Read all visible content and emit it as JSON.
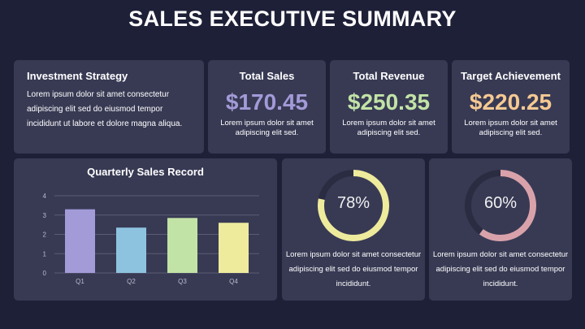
{
  "title": "SALES EXECUTIVE SUMMARY",
  "strategy": {
    "title": "Investment Strategy",
    "text": "Lorem ipsum dolor sit amet consectetur adipiscing elit sed do eiusmod tempor incididunt ut labore et dolore magna aliqua."
  },
  "stats": [
    {
      "title": "Total Sales",
      "value": "$170.45",
      "text": "Lorem ipsum dolor sit amet adipiscing elit sed.",
      "color": "#a39ad8"
    },
    {
      "title": "Total Revenue",
      "value": "$250.35",
      "text": "Lorem ipsum dolor sit amet adipiscing elit sed.",
      "color": "#c2e3a6"
    },
    {
      "title": "Target Achievement",
      "value": "$220.25",
      "text": "Lorem ipsum dolor sit amet adipiscing elit sed.",
      "color": "#f5c993"
    }
  ],
  "chart_data": {
    "type": "bar",
    "title": "Quarterly Sales Record",
    "categories": [
      "Q1",
      "Q2",
      "Q3",
      "Q4"
    ],
    "values": [
      3.3,
      2.35,
      2.85,
      2.6
    ],
    "colors": [
      "#a39ad8",
      "#8ec3df",
      "#c2e3a6",
      "#eeeb9d"
    ],
    "ylim": [
      0,
      4
    ],
    "yticks": [
      "0",
      "1",
      "2",
      "3",
      "4"
    ],
    "grid": true,
    "xlabel": "",
    "ylabel": ""
  },
  "donuts": [
    {
      "value": 0.78,
      "label": "78%",
      "color": "#eeeb9d",
      "track": "#2a2c42",
      "text": "Lorem ipsum dolor sit amet consectetur adipiscing elit sed do eiusmod tempor incididunt."
    },
    {
      "value": 0.6,
      "label": "60%",
      "color": "#d9a2ab",
      "track": "#2a2c42",
      "text": "Lorem ipsum dolor sit amet consectetur adipiscing elit sed do eiusmod tempor incididunt."
    }
  ]
}
